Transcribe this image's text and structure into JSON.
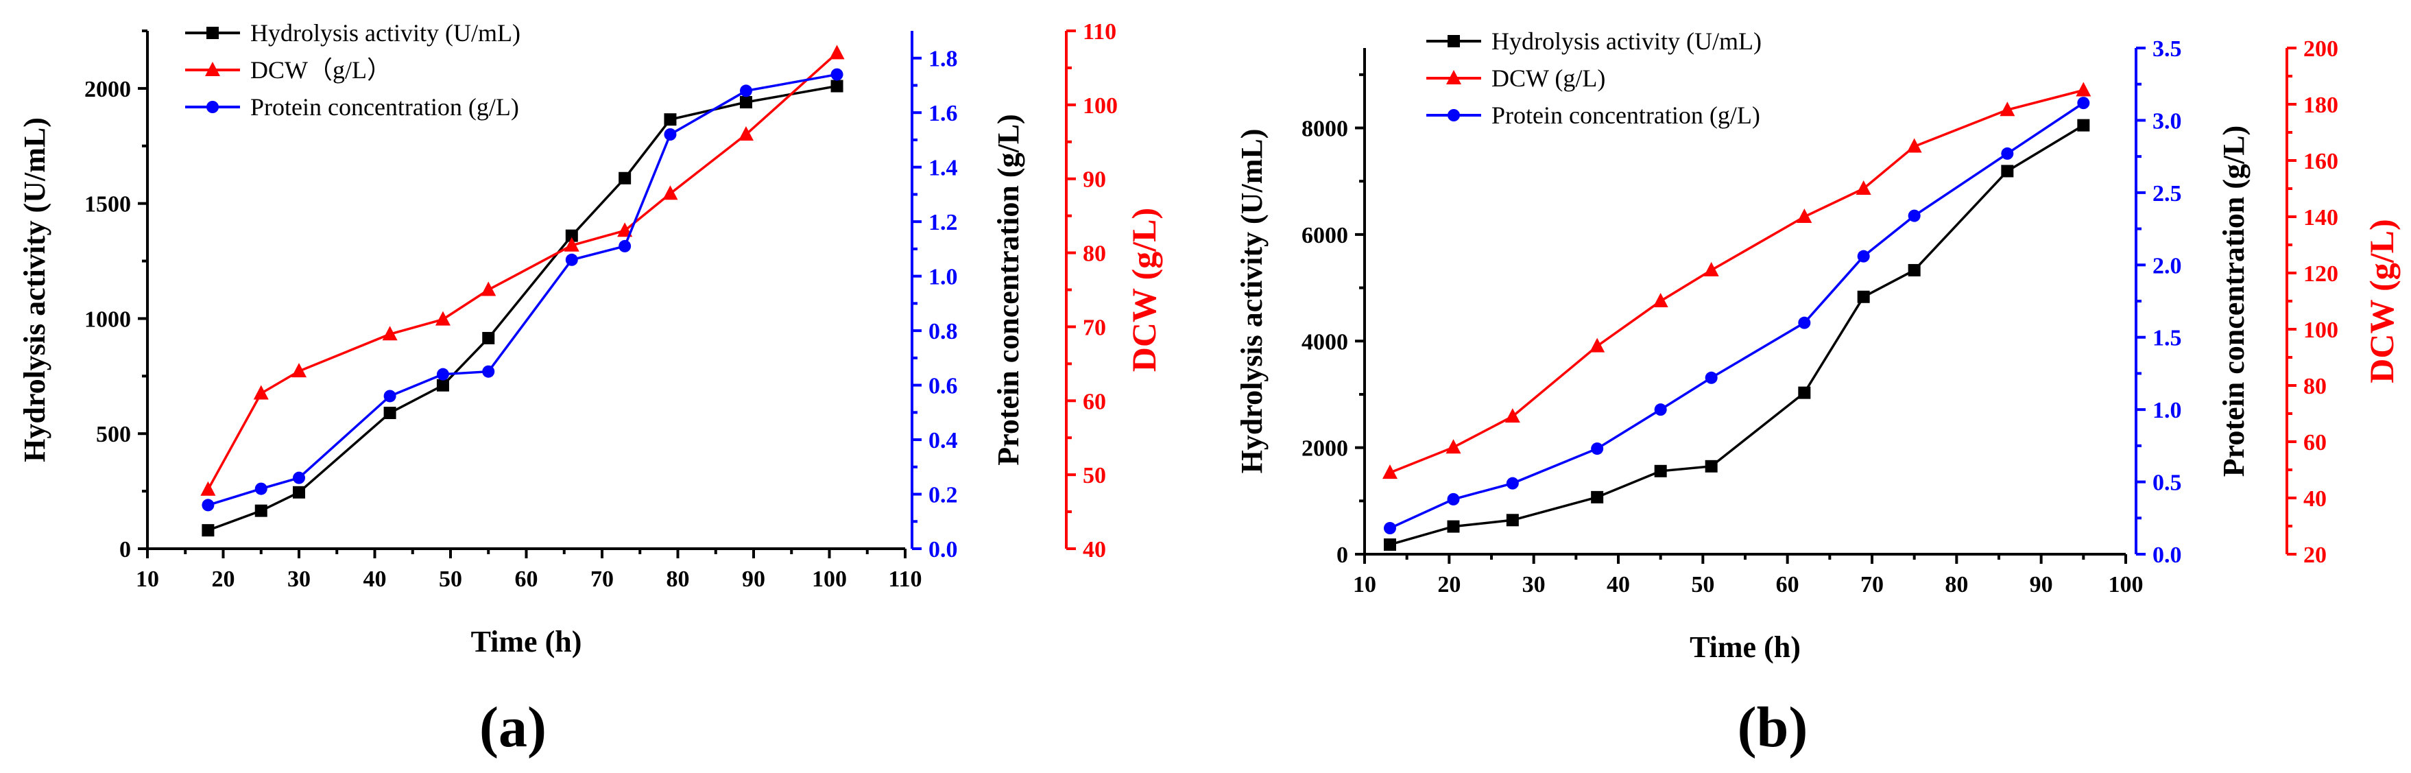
{
  "colors": {
    "black": "#000000",
    "red": "#ff0000",
    "blue": "#0000ff"
  },
  "panel_labels": [
    "(a)",
    "(b)"
  ],
  "chart_data": [
    {
      "type": "line",
      "panel": "(a)",
      "xlabel": "Time (h)",
      "xlim": [
        10,
        110
      ],
      "xticks": [
        10,
        20,
        30,
        40,
        50,
        60,
        70,
        80,
        90,
        100,
        110
      ],
      "y_left": {
        "label": "Hydrolysis activity (U/mL)",
        "lim": [
          0,
          2250
        ],
        "ticks": [
          0,
          500,
          1000,
          1500,
          2000
        ]
      },
      "y_blue": {
        "label": "Protein concentration (g/L)",
        "lim": [
          0,
          1.9
        ],
        "ticks": [
          0.0,
          0.2,
          0.4,
          0.6,
          0.8,
          1.0,
          1.2,
          1.4,
          1.6,
          1.8
        ]
      },
      "y_red": {
        "label": "DCW (g/L)",
        "lim": [
          40,
          110
        ],
        "ticks": [
          40,
          50,
          60,
          70,
          80,
          90,
          100,
          110
        ]
      },
      "legend_position": "top-left",
      "series": [
        {
          "name": "Hydrolysis activity (U/mL)",
          "axis": "left",
          "color": "black",
          "marker": "square",
          "x": [
            18,
            25,
            30,
            42,
            49,
            55,
            66,
            73,
            79,
            89,
            101
          ],
          "y": [
            80,
            165,
            245,
            590,
            710,
            915,
            1360,
            1610,
            1865,
            1940,
            2010
          ]
        },
        {
          "name": "DCW（g/L）",
          "axis": "red",
          "color": "red",
          "marker": "triangle",
          "x": [
            18,
            25,
            30,
            42,
            49,
            55,
            66,
            73,
            79,
            89,
            101
          ],
          "y": [
            48,
            61,
            64,
            69,
            71,
            75,
            81,
            83,
            88,
            96,
            107
          ]
        },
        {
          "name": "Protein concentration (g/L)",
          "axis": "blue",
          "color": "blue",
          "marker": "circle",
          "x": [
            18,
            25,
            30,
            42,
            49,
            55,
            66,
            73,
            79,
            89,
            101
          ],
          "y": [
            0.16,
            0.22,
            0.26,
            0.56,
            0.64,
            0.65,
            1.06,
            1.11,
            1.52,
            1.68,
            1.74
          ]
        }
      ]
    },
    {
      "type": "line",
      "panel": "(b)",
      "xlabel": "Time (h)",
      "xlim": [
        10,
        100
      ],
      "xticks": [
        10,
        20,
        30,
        40,
        50,
        60,
        70,
        80,
        90,
        100
      ],
      "y_left": {
        "label": "Hydrolysis activity (U/mL)",
        "lim": [
          0,
          9500
        ],
        "ticks": [
          0,
          2000,
          4000,
          6000,
          8000
        ]
      },
      "y_blue": {
        "label": "Protein concentration (g/L)",
        "lim": [
          0,
          3.5
        ],
        "ticks": [
          0.0,
          0.5,
          1.0,
          1.5,
          2.0,
          2.5,
          3.0,
          3.5
        ]
      },
      "y_red": {
        "label": "DCW (g/L)",
        "lim": [
          20,
          200
        ],
        "ticks": [
          20,
          40,
          60,
          80,
          100,
          120,
          140,
          160,
          180,
          200
        ]
      },
      "legend_position": "top-left",
      "series": [
        {
          "name": "Hydrolysis activity (U/mL)",
          "axis": "left",
          "color": "black",
          "marker": "square",
          "x": [
            13,
            20.5,
            27.5,
            37.5,
            45,
            51,
            62,
            69,
            75,
            86,
            95
          ],
          "y": [
            180,
            520,
            640,
            1070,
            1560,
            1650,
            3030,
            4830,
            5330,
            7190,
            8050
          ]
        },
        {
          "name": "DCW (g/L)",
          "axis": "red",
          "color": "red",
          "marker": "triangle",
          "x": [
            13,
            20.5,
            27.5,
            37.5,
            45,
            51,
            62,
            69,
            75,
            86,
            95
          ],
          "y": [
            49,
            58,
            69,
            94,
            110,
            121,
            140,
            150,
            165,
            178,
            185
          ]
        },
        {
          "name": "Protein concentration (g/L)",
          "axis": "blue",
          "color": "blue",
          "marker": "circle",
          "x": [
            13,
            20.5,
            27.5,
            37.5,
            45,
            51,
            62,
            69,
            75,
            86,
            95
          ],
          "y": [
            0.18,
            0.38,
            0.49,
            0.73,
            1.0,
            1.22,
            1.6,
            2.06,
            2.34,
            2.77,
            3.12
          ]
        }
      ]
    }
  ]
}
